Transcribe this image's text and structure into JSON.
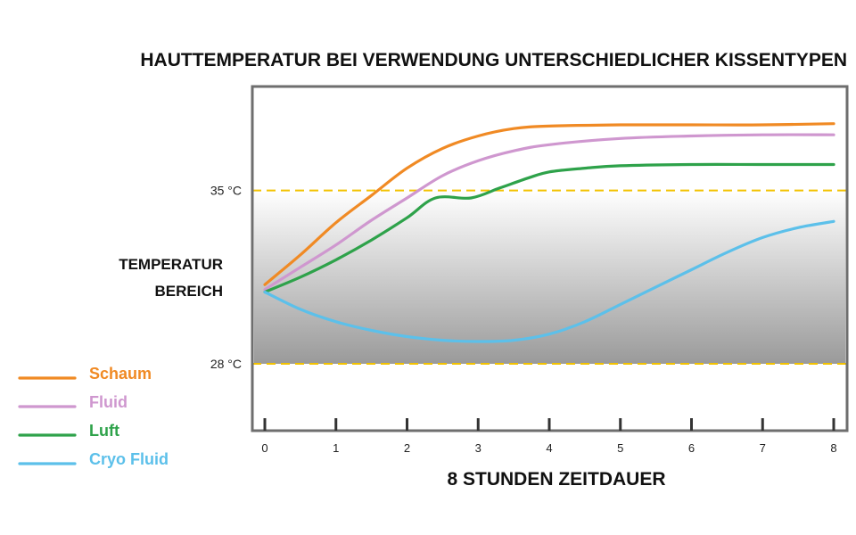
{
  "chart_data": {
    "type": "line",
    "title": "HAUTTEMPERATUR BEI VERWENDUNG UNTERSCHIEDLICHER KISSENTYPEN",
    "xlabel": "8 STUNDEN ZEITDAUER",
    "ylabel": [
      "TEMPERATUR",
      "BEREICH"
    ],
    "x_ticks": [
      "0",
      "1",
      "2",
      "3",
      "4",
      "5",
      "6",
      "7",
      "8"
    ],
    "xlim": [
      0,
      8
    ],
    "ylim": [
      25.3,
      39.2
    ],
    "grid": false,
    "legend_position": "bottom-left",
    "reference_lines": [
      {
        "label": "35 °C",
        "value": 35,
        "color": "#f2c200"
      },
      {
        "label": "28 °C",
        "value": 28,
        "color": "#f2c200"
      }
    ],
    "shaded_band": {
      "from": 28,
      "to": 35
    },
    "series": [
      {
        "name": "Schaum",
        "color": "#f08a24",
        "x": [
          0,
          0.5,
          1,
          1.5,
          2,
          2.5,
          3,
          3.5,
          4,
          5,
          6,
          7,
          8
        ],
        "y": [
          31.2,
          32.4,
          33.7,
          34.8,
          35.9,
          36.7,
          37.2,
          37.5,
          37.6,
          37.65,
          37.65,
          37.65,
          37.7
        ]
      },
      {
        "name": "Fluid",
        "color": "#cf97cf",
        "x": [
          0,
          0.5,
          1,
          1.5,
          2,
          2.5,
          3,
          3.5,
          4,
          5,
          6,
          7,
          8
        ],
        "y": [
          31.0,
          31.9,
          32.8,
          33.8,
          34.7,
          35.6,
          36.2,
          36.6,
          36.85,
          37.1,
          37.2,
          37.25,
          37.25
        ]
      },
      {
        "name": "Luft",
        "color": "#2ea24a",
        "x": [
          0,
          0.5,
          1,
          1.5,
          2,
          2.4,
          2.9,
          3.3,
          3.7,
          4,
          4.5,
          5,
          6,
          7,
          8
        ],
        "y": [
          30.9,
          31.5,
          32.2,
          33.0,
          33.9,
          34.7,
          34.7,
          35.1,
          35.5,
          35.75,
          35.9,
          36.0,
          36.05,
          36.05,
          36.05
        ]
      },
      {
        "name": "Cryo Fluid",
        "color": "#5cc0ea",
        "x": [
          0,
          0.5,
          1,
          1.5,
          2,
          2.5,
          3,
          3.5,
          4,
          4.5,
          5,
          5.5,
          6,
          6.5,
          7,
          7.5,
          8
        ],
        "y": [
          30.9,
          30.2,
          29.7,
          29.35,
          29.1,
          28.95,
          28.9,
          28.95,
          29.2,
          29.7,
          30.4,
          31.1,
          31.8,
          32.5,
          33.1,
          33.5,
          33.75
        ]
      }
    ]
  }
}
